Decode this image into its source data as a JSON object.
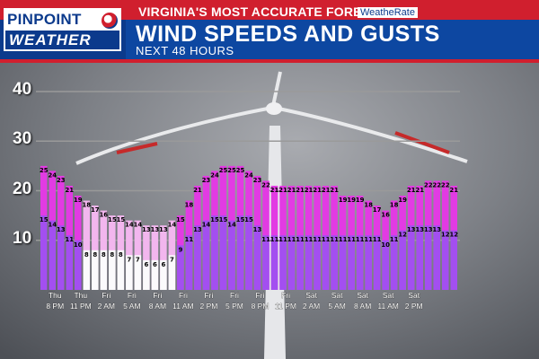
{
  "header": {
    "logo_line1": "PINPOINT",
    "logo_line2": "WEATHER",
    "tagline": "VIRGINIA'S MOST ACCURATE FORECAST",
    "brand": "WeatheRate",
    "title": "WIND SPEEDS AND GUSTS",
    "subtitle": "NEXT 48 HOURS"
  },
  "colors": {
    "navy": "#0b3a8c",
    "gust": "#e23be3",
    "speed": "#a34ff0",
    "header_red": "#d01f2e"
  },
  "chart_data": {
    "type": "bar",
    "ylim": [
      0,
      40
    ],
    "yticks": [
      10,
      20,
      30,
      40
    ],
    "grid": true,
    "tick_labels": [
      {
        "day": "Thu",
        "time": "8 PM"
      },
      {
        "day": "Thu",
        "time": "11 PM"
      },
      {
        "day": "Fri",
        "time": "2 AM"
      },
      {
        "day": "Fri",
        "time": "5 AM"
      },
      {
        "day": "Fri",
        "time": "8 AM"
      },
      {
        "day": "Fri",
        "time": "11 AM"
      },
      {
        "day": "Fri",
        "time": "2 PM"
      },
      {
        "day": "Fri",
        "time": "5 PM"
      },
      {
        "day": "Fri",
        "time": "8 PM"
      },
      {
        "day": "Fri",
        "time": "11 PM"
      },
      {
        "day": "Sat",
        "time": "2 AM"
      },
      {
        "day": "Sat",
        "time": "5 AM"
      },
      {
        "day": "Sat",
        "time": "8 AM"
      },
      {
        "day": "Sat",
        "time": "11 AM"
      },
      {
        "day": "Sat",
        "time": "2 PM"
      }
    ],
    "series": [
      {
        "values": [
          25,
          24,
          23,
          21,
          19,
          18,
          17,
          16,
          15,
          15,
          14,
          14,
          13,
          13,
          13,
          14,
          15,
          18,
          21,
          23,
          24,
          25,
          25,
          25,
          24,
          23,
          22,
          21,
          21,
          21,
          21,
          21,
          21,
          21,
          21,
          19,
          19,
          19,
          18,
          17,
          16,
          18,
          19,
          21,
          21,
          22,
          22,
          22,
          21
        ]
      },
      {
        "values": [
          15,
          14,
          13,
          11,
          10,
          8,
          8,
          8,
          8,
          8,
          7,
          7,
          6,
          6,
          6,
          7,
          9,
          11,
          13,
          14,
          15,
          15,
          14,
          15,
          15,
          13,
          11,
          11,
          11,
          11,
          11,
          11,
          11,
          11,
          11,
          11,
          11,
          11,
          11,
          11,
          10,
          11,
          12,
          13,
          13,
          13,
          13,
          12,
          12
        ]
      }
    ]
  }
}
